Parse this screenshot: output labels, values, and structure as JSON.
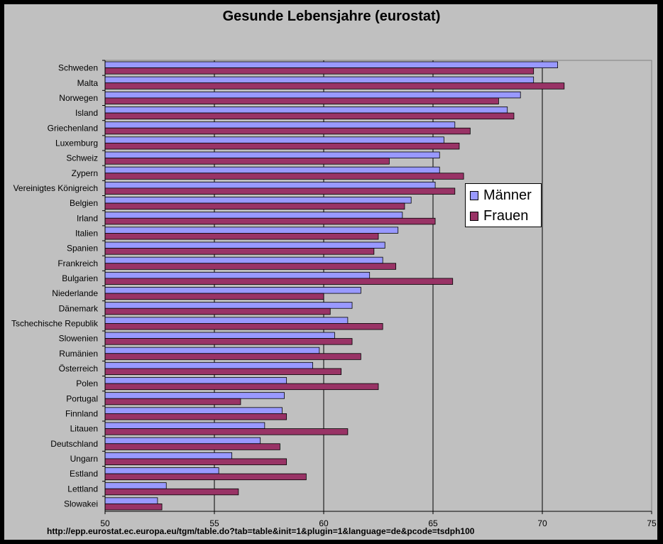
{
  "chart_data": {
    "type": "bar",
    "orientation": "horizontal",
    "title": "Gesunde Lebensjahre (eurostat)",
    "xlabel": "",
    "ylabel": "",
    "xlim": [
      50,
      75
    ],
    "x_ticks": [
      "50",
      "55",
      "60",
      "65",
      "70",
      "75"
    ],
    "grid": "vertical",
    "legend_position": "right",
    "categories": [
      "Schweden",
      "Malta",
      "Norwegen",
      "Island",
      "Griechenland",
      "Luxemburg",
      "Schweiz",
      "Zypern",
      "Vereinigtes Königreich",
      "Belgien",
      "Irland",
      "Italien",
      "Spanien",
      "Frankreich",
      "Bulgarien",
      "Niederlande",
      "Dänemark",
      "Tschechische Republik",
      "Slowenien",
      "Rumänien",
      "Österreich",
      "Polen",
      "Portugal",
      "Finnland",
      "Litauen",
      "Deutschland",
      "Ungarn",
      "Estland",
      "Lettland",
      "Slowakei"
    ],
    "series": [
      {
        "name": "Männer",
        "color": "#9999ff",
        "values": [
          70.7,
          69.6,
          69.0,
          68.4,
          66.0,
          65.5,
          65.3,
          65.3,
          65.1,
          64.0,
          63.6,
          63.4,
          62.8,
          62.7,
          62.1,
          61.7,
          61.3,
          61.1,
          60.5,
          59.8,
          59.5,
          58.3,
          58.2,
          58.1,
          57.3,
          57.1,
          55.8,
          55.2,
          52.8,
          52.4
        ]
      },
      {
        "name": "Frauen",
        "color": "#993366",
        "values": [
          69.6,
          71.0,
          68.0,
          68.7,
          66.7,
          66.2,
          63.0,
          66.4,
          66.0,
          63.7,
          65.1,
          62.5,
          62.3,
          63.3,
          65.9,
          60.0,
          60.3,
          62.7,
          61.3,
          61.7,
          60.8,
          62.5,
          56.2,
          58.3,
          61.1,
          58.0,
          58.3,
          59.2,
          56.1,
          52.6
        ]
      }
    ]
  },
  "source_url": "http://epp.eurostat.ec.europa.eu/tgm/table.do?tab=table&init=1&plugin=1&language=de&pcode=tsdph100"
}
